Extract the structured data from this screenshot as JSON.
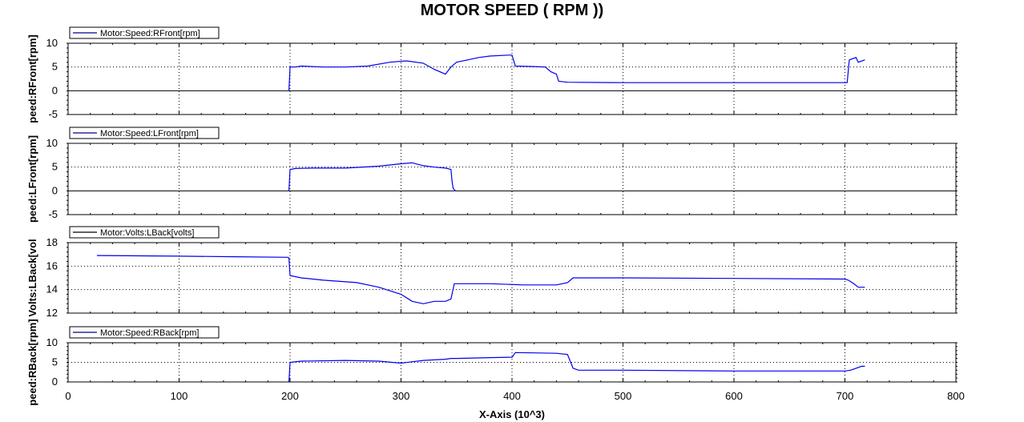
{
  "title": "MOTOR SPEED ( RPM ))",
  "chart_data": {
    "type": "line",
    "xlabel": "X-Axis (10^3)",
    "x_ticks": [
      0,
      100,
      200,
      300,
      400,
      500,
      600,
      700,
      800
    ],
    "xlim": [
      0,
      800
    ],
    "grid": true,
    "legend_placement": "top-left",
    "panels": [
      {
        "ylabel": "peed:RFront[rpm]",
        "ylim": [
          -5,
          10
        ],
        "y_ticks": [
          -5,
          0,
          5,
          10
        ],
        "legend_line_color": "#000080",
        "series": [
          {
            "name": "Motor:Speed:RFront[rpm]",
            "color": "#0000ee",
            "points": [
              [
                199,
                0
              ],
              [
                200,
                5
              ],
              [
                205,
                5
              ],
              [
                210,
                5.2
              ],
              [
                230,
                5
              ],
              [
                250,
                5
              ],
              [
                270,
                5.2
              ],
              [
                290,
                6
              ],
              [
                305,
                6.3
              ],
              [
                320,
                5.8
              ],
              [
                330,
                4.5
              ],
              [
                340,
                3.5
              ],
              [
                345,
                5
              ],
              [
                350,
                6
              ],
              [
                360,
                6.5
              ],
              [
                370,
                7
              ],
              [
                380,
                7.3
              ],
              [
                397,
                7.5
              ],
              [
                400,
                7.5
              ],
              [
                403,
                5.2
              ],
              [
                420,
                5.1
              ],
              [
                430,
                5
              ],
              [
                435,
                4
              ],
              [
                440,
                3.5
              ],
              [
                442,
                2
              ],
              [
                450,
                1.8
              ],
              [
                500,
                1.7
              ],
              [
                600,
                1.7
              ],
              [
                700,
                1.7
              ],
              [
                702,
                1.7
              ],
              [
                704,
                6.5
              ],
              [
                710,
                7
              ],
              [
                712,
                6
              ],
              [
                718,
                6.5
              ]
            ]
          }
        ]
      },
      {
        "ylabel": "peed:LFront[rpm]",
        "ylim": [
          -5,
          10
        ],
        "y_ticks": [
          -5,
          0,
          5,
          10
        ],
        "legend_line_color": "#000080",
        "series": [
          {
            "name": "Motor:Speed:LFront[rpm]",
            "color": "#0000ee",
            "points": [
              [
                199,
                0
              ],
              [
                200,
                4.5
              ],
              [
                205,
                4.7
              ],
              [
                220,
                4.8
              ],
              [
                250,
                4.8
              ],
              [
                280,
                5.2
              ],
              [
                300,
                5.7
              ],
              [
                310,
                5.9
              ],
              [
                320,
                5.3
              ],
              [
                330,
                5
              ],
              [
                340,
                4.8
              ],
              [
                345,
                4.5
              ],
              [
                346,
                2
              ],
              [
                347,
                0.5
              ],
              [
                349,
                0
              ]
            ]
          }
        ]
      },
      {
        "ylabel": "Volts:LBack[vol",
        "ylim": [
          12,
          18
        ],
        "y_ticks": [
          12,
          14,
          16,
          18
        ],
        "legend_line_color": "#000000",
        "series": [
          {
            "name": "Motor:Volts:LBack[volts]",
            "color": "#0000ee",
            "points": [
              [
                26,
                16.9
              ],
              [
                100,
                16.85
              ],
              [
                150,
                16.8
              ],
              [
                198,
                16.75
              ],
              [
                199,
                16.7
              ],
              [
                200,
                15.2
              ],
              [
                210,
                15
              ],
              [
                230,
                14.8
              ],
              [
                260,
                14.6
              ],
              [
                280,
                14.2
              ],
              [
                300,
                13.6
              ],
              [
                310,
                13
              ],
              [
                320,
                12.8
              ],
              [
                330,
                13
              ],
              [
                340,
                13
              ],
              [
                345,
                13.2
              ],
              [
                348,
                14.5
              ],
              [
                380,
                14.5
              ],
              [
                410,
                14.4
              ],
              [
                440,
                14.4
              ],
              [
                450,
                14.6
              ],
              [
                455,
                15
              ],
              [
                500,
                15
              ],
              [
                600,
                14.95
              ],
              [
                700,
                14.9
              ],
              [
                703,
                14.8
              ],
              [
                708,
                14.5
              ],
              [
                712,
                14.2
              ],
              [
                718,
                14.2
              ]
            ]
          }
        ]
      },
      {
        "ylabel": "peed:RBack[rpm]",
        "ylim": [
          0,
          10
        ],
        "y_ticks": [
          0,
          5,
          10
        ],
        "legend_line_color": "#000080",
        "series": [
          {
            "name": "Motor:Speed:RBack[rpm]",
            "color": "#0000ee",
            "points": [
              [
                199,
                0
              ],
              [
                200,
                5
              ],
              [
                210,
                5.3
              ],
              [
                250,
                5.5
              ],
              [
                280,
                5.3
              ],
              [
                300,
                4.8
              ],
              [
                320,
                5.5
              ],
              [
                340,
                5.8
              ],
              [
                345,
                6
              ],
              [
                350,
                6
              ],
              [
                380,
                6.2
              ],
              [
                400,
                6.3
              ],
              [
                403,
                7.5
              ],
              [
                420,
                7.4
              ],
              [
                440,
                7.3
              ],
              [
                450,
                7
              ],
              [
                455,
                3.5
              ],
              [
                460,
                3
              ],
              [
                500,
                3
              ],
              [
                600,
                2.8
              ],
              [
                700,
                2.8
              ],
              [
                705,
                3
              ],
              [
                710,
                3.5
              ],
              [
                715,
                4
              ],
              [
                718,
                4
              ]
            ]
          }
        ]
      }
    ]
  }
}
